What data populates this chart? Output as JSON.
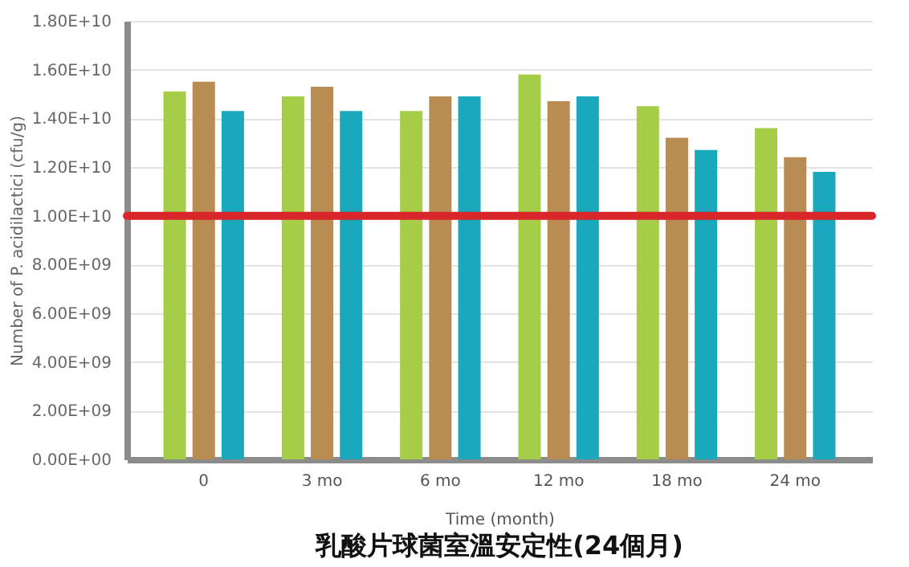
{
  "chart_data": {
    "type": "bar",
    "title": "乳酸片球菌室溫安定性(24個月)",
    "xlabel": "Time (month)",
    "ylabel": "Number of P. acidilactici (cfu/g)",
    "categories": [
      "0",
      "3 mo",
      "6 mo",
      "12 mo",
      "18 mo",
      "24 mo"
    ],
    "series": [
      {
        "color": "#a6cd48",
        "values": [
          15100000000.0,
          14900000000.0,
          14300000000.0,
          15800000000.0,
          14500000000.0,
          13600000000.0
        ]
      },
      {
        "color": "#b88c52",
        "values": [
          15500000000.0,
          15300000000.0,
          14900000000.0,
          14700000000.0,
          13200000000.0,
          12400000000.0
        ]
      },
      {
        "color": "#1aa9bc",
        "values": [
          14300000000.0,
          14300000000.0,
          14900000000.0,
          14900000000.0,
          12700000000.0,
          11800000000.0
        ]
      }
    ],
    "ylim": [
      0,
      18000000000.0
    ],
    "yticks": [
      {
        "value": 0,
        "label": "0.00E+00"
      },
      {
        "value": 2000000000.0,
        "label": "2.00E+09"
      },
      {
        "value": 4000000000.0,
        "label": "4.00E+09"
      },
      {
        "value": 6000000000.0,
        "label": "6.00E+09"
      },
      {
        "value": 8000000000.0,
        "label": "8.00E+09"
      },
      {
        "value": 10000000000.0,
        "label": "1.00E+10"
      },
      {
        "value": 12000000000.0,
        "label": "1.20E+10"
      },
      {
        "value": 14000000000.0,
        "label": "1.40E+10"
      },
      {
        "value": 16000000000.0,
        "label": "1.60E+10"
      },
      {
        "value": 18000000000.0,
        "label": "1.80E+10"
      }
    ],
    "ref_lines": [
      {
        "axis": "y",
        "value": 10000000000.0,
        "color": "#d9262b"
      }
    ],
    "grid": "y",
    "legend": false
  }
}
